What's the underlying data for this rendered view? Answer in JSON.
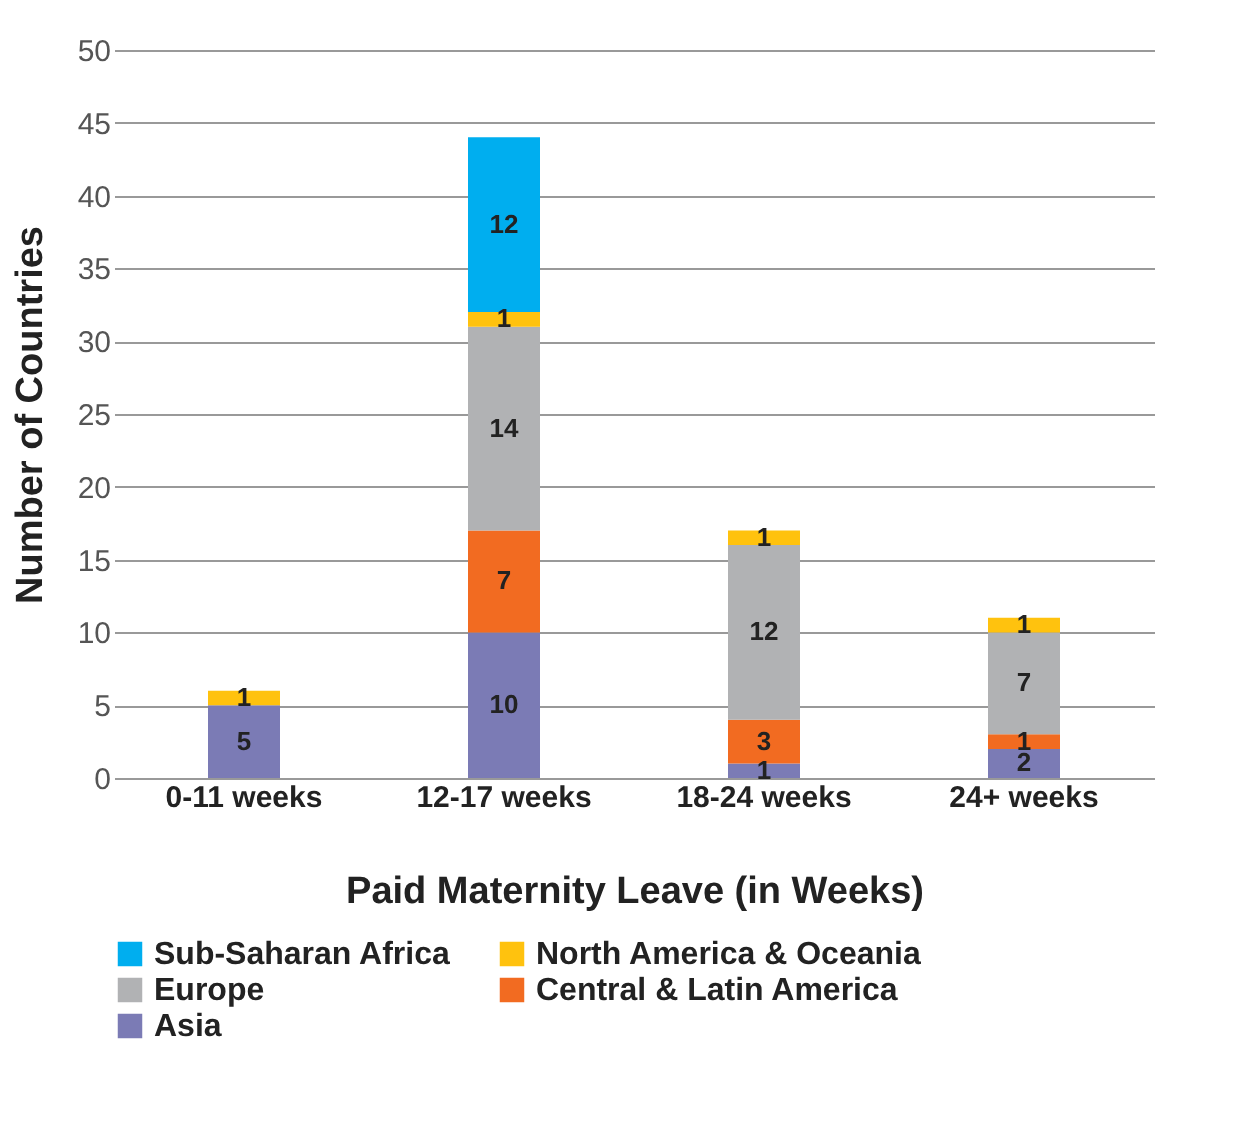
{
  "chart_data": {
    "type": "bar",
    "stacked": true,
    "xlabel": "Paid Maternity Leave (in Weeks)",
    "ylabel": "Number of Countries",
    "categories": [
      "0-11 weeks",
      "12-17 weeks",
      "18-24 weeks",
      "24+ weeks"
    ],
    "series": [
      {
        "name": "Asia",
        "color": "#7b7bb5",
        "values": [
          5,
          10,
          1,
          2
        ]
      },
      {
        "name": "Central & Latin America",
        "color": "#f26b21",
        "values": [
          null,
          7,
          3,
          1
        ]
      },
      {
        "name": "Europe",
        "color": "#b1b2b4",
        "values": [
          null,
          14,
          12,
          7
        ]
      },
      {
        "name": "North America & Oceania",
        "color": "#ffc20e",
        "values": [
          1,
          1,
          1,
          1
        ]
      },
      {
        "name": "Sub-Saharan Africa",
        "color": "#00aeef",
        "values": [
          null,
          12,
          null,
          null
        ]
      }
    ],
    "ylim": [
      0,
      50
    ],
    "yticks": [
      0,
      5,
      10,
      15,
      20,
      25,
      30,
      35,
      40,
      45,
      50
    ],
    "grid": "y",
    "legend": "bottom",
    "data_labels": true
  }
}
